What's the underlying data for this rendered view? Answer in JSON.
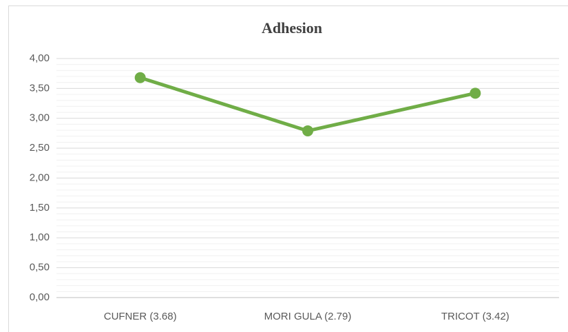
{
  "chart_data": {
    "type": "line",
    "title": "Adhesion",
    "categories": [
      "CUFNER (3.68)",
      "MORI GULA (2.79)",
      "TRICOT (3.42)"
    ],
    "series": [
      {
        "name": "Adhesion",
        "color": "#70ad47",
        "values": [
          3.68,
          2.79,
          3.42
        ]
      }
    ],
    "ylim": [
      0,
      4
    ],
    "yticks": [
      {
        "value": 0,
        "label": "0,00"
      },
      {
        "value": 0.5,
        "label": "0,50"
      },
      {
        "value": 1,
        "label": "1,00"
      },
      {
        "value": 1.5,
        "label": "1,50"
      },
      {
        "value": 2,
        "label": "2,00"
      },
      {
        "value": 2.5,
        "label": "2,50"
      },
      {
        "value": 3,
        "label": "3,00"
      },
      {
        "value": 3.5,
        "label": "3,50"
      },
      {
        "value": 4,
        "label": "4,00"
      }
    ],
    "grid": true
  }
}
